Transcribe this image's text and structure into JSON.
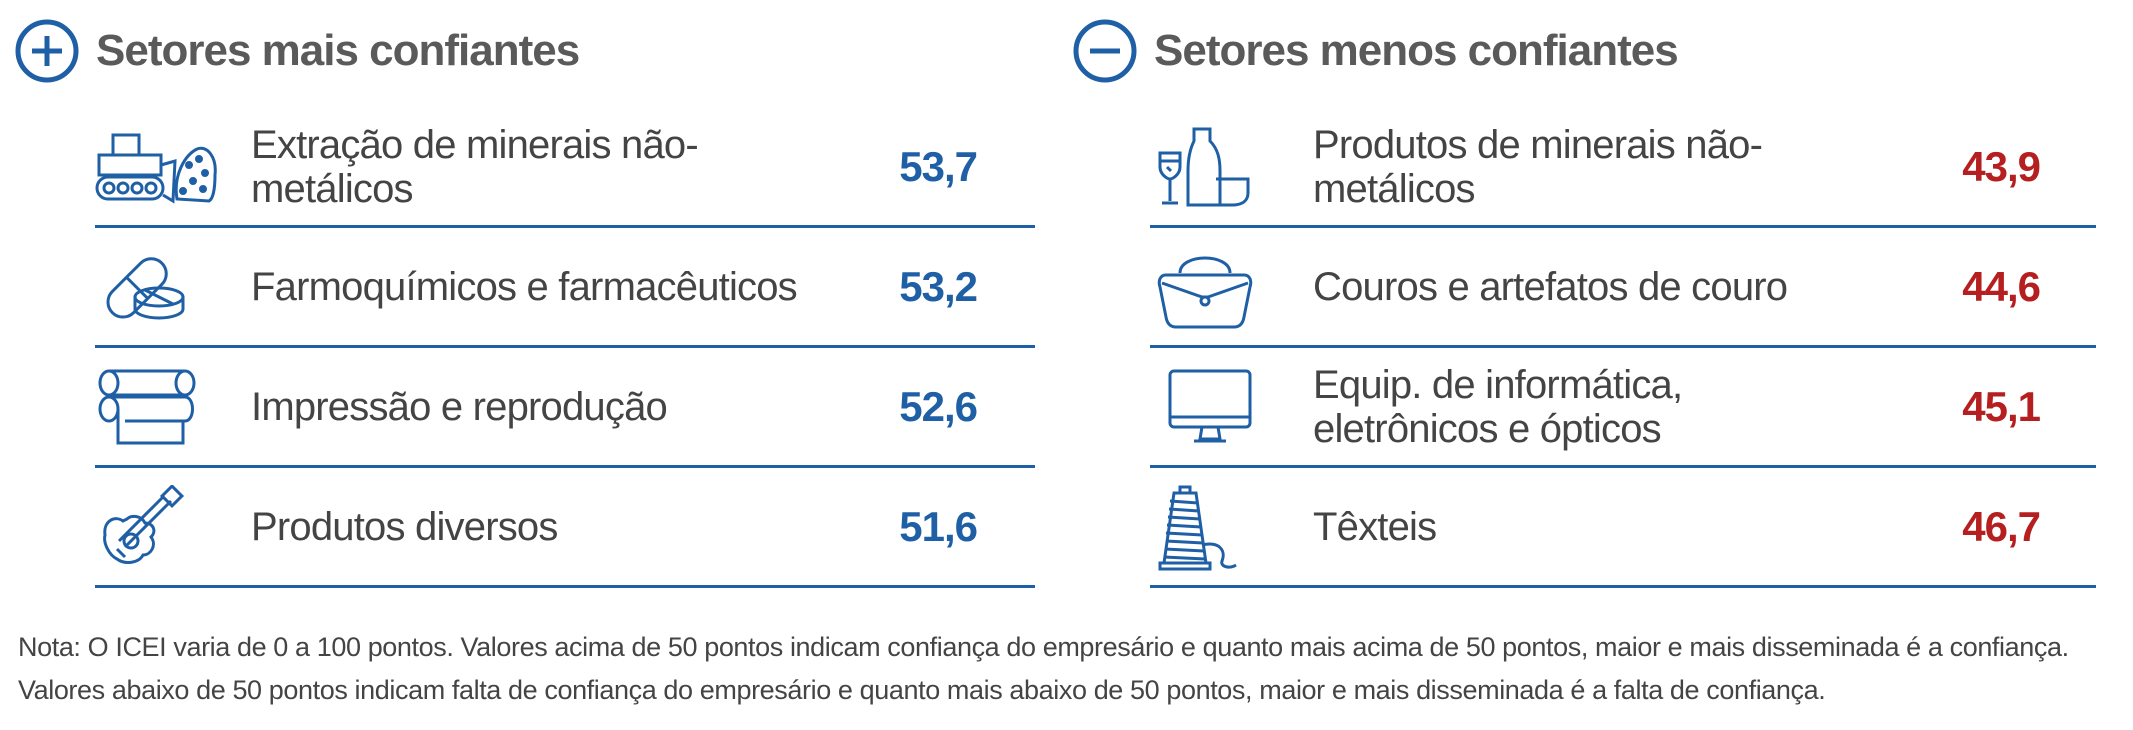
{
  "colors": {
    "accent_blue": "#1f5fa6",
    "accent_red": "#b51f1f",
    "rule": "#1f5fa6"
  },
  "left": {
    "title": "Setores mais confiantes",
    "header_icon": "plus-circle-icon",
    "items": [
      {
        "label": "Extração de minerais não-metálicos",
        "value": "53,7",
        "icon": "bulldozer-rocks-icon"
      },
      {
        "label": "Farmoquímicos e farmacêuticos",
        "value": "53,2",
        "icon": "pills-icon"
      },
      {
        "label": "Impressão e reprodução",
        "value": "52,6",
        "icon": "paper-roll-icon"
      },
      {
        "label": "Produtos diversos",
        "value": "51,6",
        "icon": "guitar-icon"
      }
    ]
  },
  "right": {
    "title": "Setores menos confiantes",
    "header_icon": "minus-circle-icon",
    "items": [
      {
        "label": "Produtos de minerais não-metálicos",
        "value": "43,9",
        "icon": "glassware-icon"
      },
      {
        "label": "Couros e artefatos de couro",
        "value": "44,6",
        "icon": "handbag-icon"
      },
      {
        "label": "Equip. de informática, eletrônicos e ópticos",
        "value": "45,1",
        "icon": "monitor-icon"
      },
      {
        "label": "Têxteis",
        "value": "46,7",
        "icon": "thread-spool-icon"
      }
    ]
  },
  "note": {
    "line1": "Nota: O ICEI varia de 0 a 100 pontos. Valores acima de 50 pontos indicam confiança do empresário e quanto mais acima de 50 pontos, maior e mais disseminada é a confiança.",
    "line2": "Valores abaixo de 50 pontos indicam falta de confiança do empresário e quanto mais abaixo de 50 pontos, maior e mais disseminada é a falta de confiança."
  }
}
